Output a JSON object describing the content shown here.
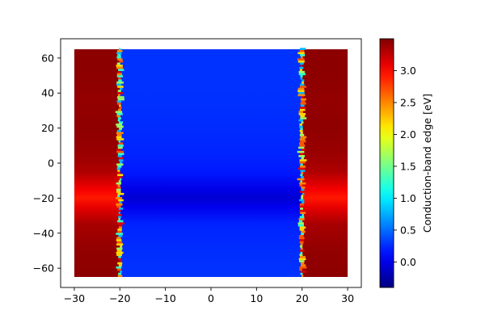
{
  "chart_data": {
    "type": "heatmap",
    "title": "",
    "xlabel": "",
    "ylabel": "",
    "xlim": [
      -33,
      33
    ],
    "ylim": [
      -71,
      71
    ],
    "data_extent": {
      "x": [
        -30,
        30
      ],
      "y": [
        -65,
        65
      ]
    },
    "xticks": [
      -30,
      -20,
      -10,
      0,
      10,
      20,
      30
    ],
    "xtick_labels": [
      "−30",
      "−20",
      "−10",
      "0",
      "10",
      "20",
      "30"
    ],
    "yticks": [
      -60,
      -40,
      -20,
      0,
      20,
      40,
      60
    ],
    "ytick_labels": [
      "−60",
      "−40",
      "−20",
      "0",
      "20",
      "40",
      "60"
    ],
    "colormap": "jet",
    "colorbar": {
      "label": "Conduction-band edge [eV]",
      "range": [
        -0.4,
        3.5
      ],
      "ticks": [
        0.0,
        0.5,
        1.0,
        1.5,
        2.0,
        2.5,
        3.0
      ],
      "tick_labels": [
        "0.0",
        "0.5",
        "1.0",
        "1.5",
        "2.0",
        "2.5",
        "3.0"
      ]
    },
    "regions": [
      {
        "name": "barrier-left",
        "x": [
          -30,
          -20
        ],
        "value_range": [
          2.85,
          3.45
        ]
      },
      {
        "name": "well",
        "x": [
          -20,
          20
        ],
        "value_range": [
          -0.3,
          0.28
        ]
      },
      {
        "name": "barrier-right",
        "x": [
          20,
          30
        ],
        "value_range": [
          2.85,
          3.45
        ]
      }
    ],
    "y_profile": {
      "y": [
        -65,
        -50,
        -35,
        -25,
        -20,
        -15,
        -5,
        5,
        20,
        35,
        50,
        65
      ],
      "barrier_eV": [
        3.45,
        3.43,
        3.35,
        3.1,
        2.92,
        3.05,
        3.32,
        3.4,
        3.44,
        3.42,
        3.45,
        3.45
      ],
      "well_eV": [
        0.28,
        0.26,
        0.22,
        0.02,
        -0.08,
        0.0,
        0.18,
        0.22,
        0.25,
        0.27,
        0.28,
        0.28
      ]
    }
  }
}
